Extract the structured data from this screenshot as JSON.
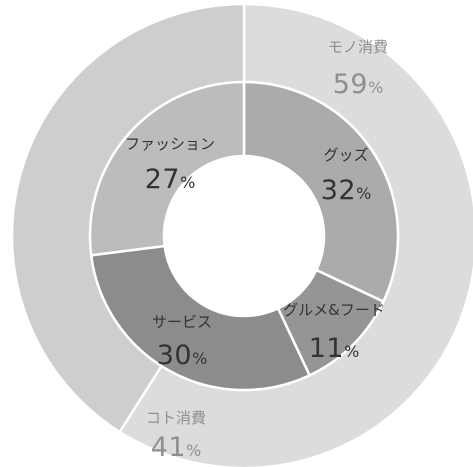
{
  "chart_data": {
    "type": "pie",
    "subtype": "nested-donut",
    "start_angle_deg": 0,
    "direction": "clockwise",
    "rings": [
      {
        "ring": "outer",
        "slices": [
          {
            "label": "モノ消費",
            "value": 59,
            "display": "59",
            "color": "#dcdcdc"
          },
          {
            "label": "コト消費",
            "value": 41,
            "display": "41",
            "color": "#cecece"
          }
        ]
      },
      {
        "ring": "inner",
        "slices": [
          {
            "label": "グッズ",
            "value": 32,
            "display": "32",
            "color": "#ababab"
          },
          {
            "label": "グルメ&フード",
            "value": 11,
            "display": "11",
            "color": "#959595"
          },
          {
            "label": "サービス",
            "value": 30,
            "display": "30",
            "color": "#8c8c8c"
          },
          {
            "label": "ファッション",
            "value": 27,
            "display": "27",
            "color": "#bcbcbc"
          }
        ]
      }
    ],
    "percent_symbol": "%"
  }
}
